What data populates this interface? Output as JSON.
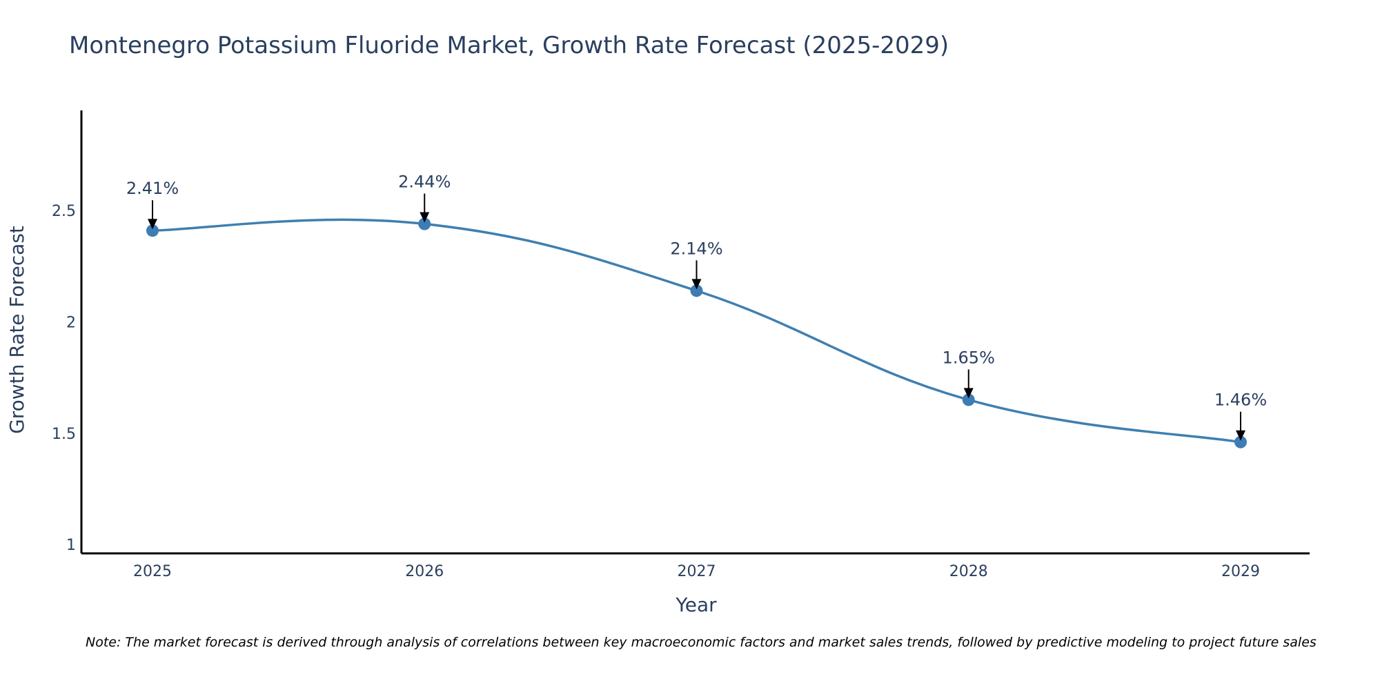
{
  "chart_data": {
    "type": "line",
    "title": "Montenegro Potassium Fluoride Market, Growth Rate Forecast (2025-2029)",
    "xlabel": "Year",
    "ylabel": "Growth Rate Forecast",
    "categories": [
      "2025",
      "2026",
      "2027",
      "2028",
      "2029"
    ],
    "values": [
      2.41,
      2.44,
      2.14,
      1.65,
      1.46
    ],
    "annotations": [
      "2.41%",
      "2.44%",
      "2.14%",
      "1.65%",
      "1.46%"
    ],
    "ylim": [
      0.96,
      2.95
    ],
    "yticks": [
      1,
      1.5,
      2,
      2.5
    ],
    "ytick_labels": [
      "1",
      "1.5",
      "2",
      "2.5"
    ],
    "line_shape": "spline",
    "grid": false,
    "line_color": "#3f7fb0",
    "marker_color": "#3d7cb5",
    "note": "Note: The market forecast is derived through analysis of correlations between key macroeconomic factors and market sales trends, followed by predictive modeling to project future sales"
  }
}
